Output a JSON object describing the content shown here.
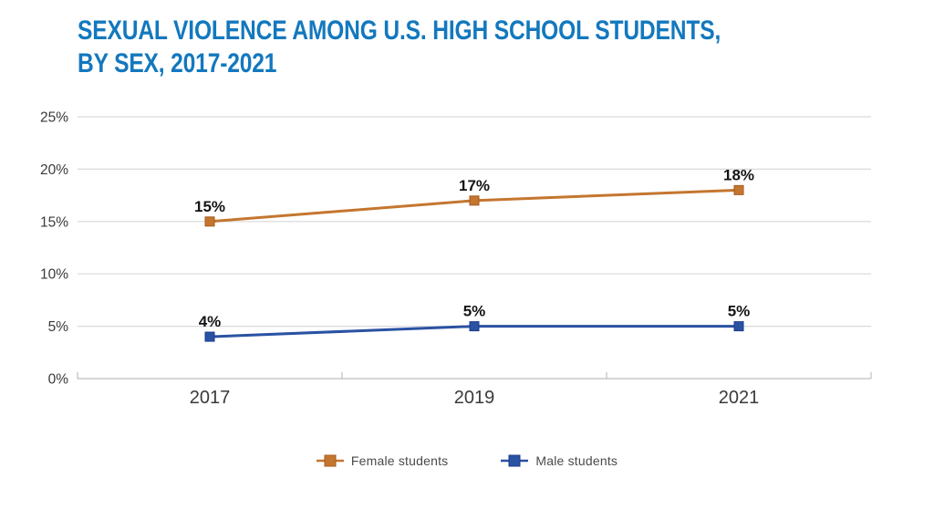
{
  "title": {
    "line1": "SEXUAL VIOLENCE AMONG U.S. HIGH SCHOOL STUDENTS,",
    "line2": "BY SEX, 2017-2021",
    "color": "#1378BE"
  },
  "chart_data": {
    "type": "line",
    "title": "SEXUAL VIOLENCE AMONG U.S. HIGH SCHOOL STUDENTS, BY SEX, 2017-2021",
    "categories": [
      "2017",
      "2019",
      "2021"
    ],
    "series": [
      {
        "name": "Female students",
        "values": [
          15,
          17,
          18
        ],
        "data_labels": [
          "15%",
          "17%",
          "18%"
        ],
        "color": "#C4762F",
        "marker_stroke": "#A55A1E"
      },
      {
        "name": "Male students",
        "values": [
          4,
          5,
          5
        ],
        "data_labels": [
          "4%",
          "5%",
          "5%"
        ],
        "color": "#2A52A3",
        "marker_stroke": "#1C3B8B"
      }
    ],
    "ylim": [
      0,
      25
    ],
    "y_ticks": [
      0,
      5,
      10,
      15,
      20,
      25
    ],
    "y_tick_labels": [
      "0%",
      "5%",
      "10%",
      "15%",
      "20%",
      "25%"
    ],
    "xlabel": "",
    "ylabel": "",
    "grid": "horizontal",
    "legend_position": "bottom",
    "marker": "square",
    "gridline_color": "#D9D9D9",
    "axis_color": "#BDBDBD",
    "tick_label_color": "#3A3A3A",
    "data_label_color": "#141414",
    "legend_text_color": "#4A4A4A"
  }
}
